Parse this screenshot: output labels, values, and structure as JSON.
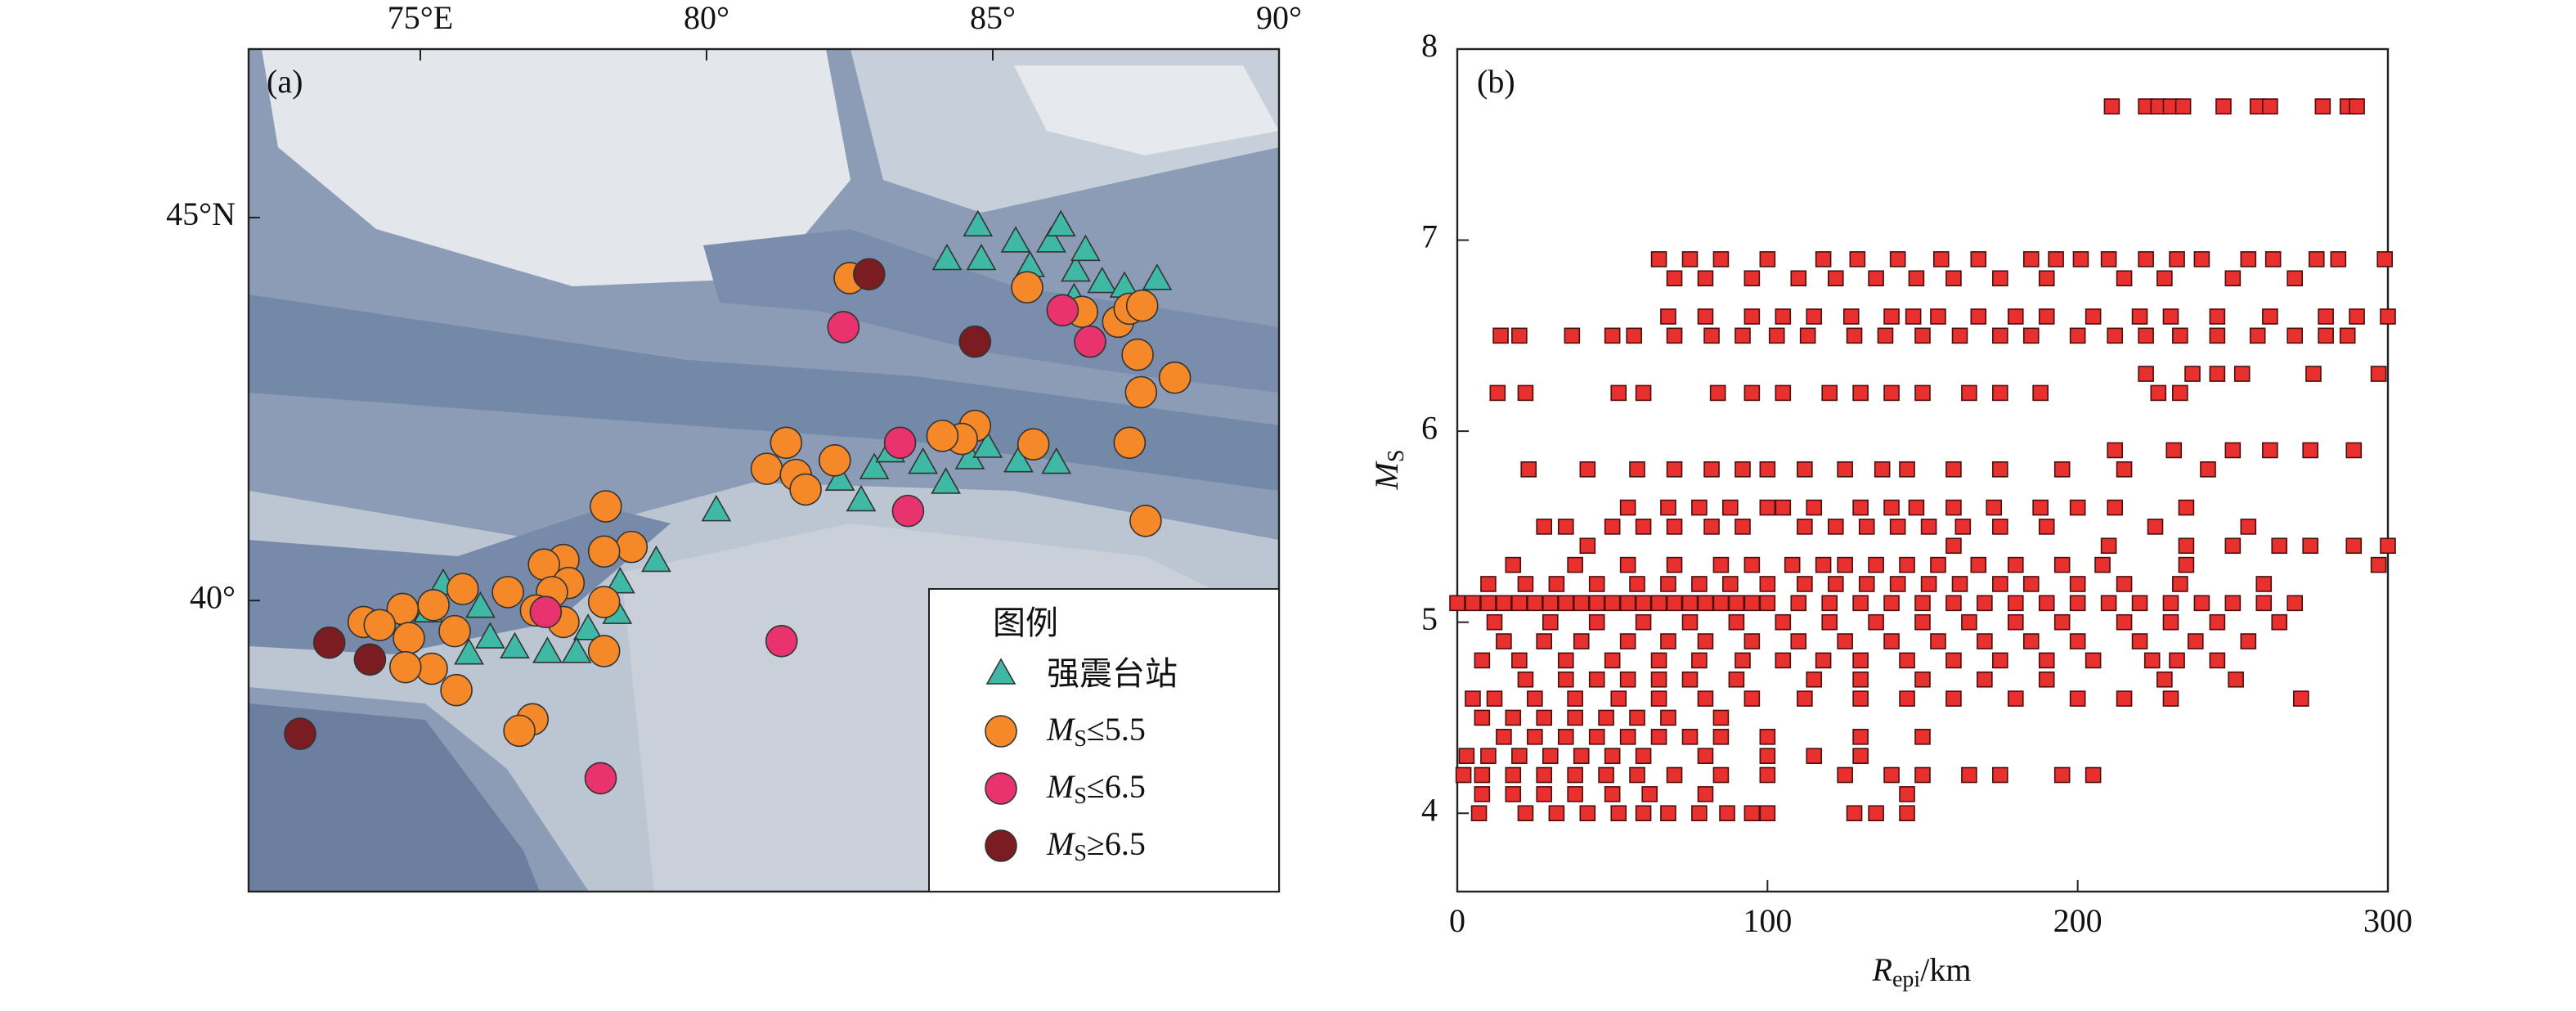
{
  "chart_data": [
    {
      "type": "map",
      "panel_label": "(a)",
      "legend_title": "图例",
      "xlim": [
        72,
        90
      ],
      "ylim": [
        36.2,
        47.2
      ],
      "xticks": [
        {
          "value": 75,
          "label": "75°E"
        },
        {
          "value": 80,
          "label": "80°"
        },
        {
          "value": 85,
          "label": "85°"
        },
        {
          "value": 90,
          "label": "90°"
        }
      ],
      "yticks": [
        {
          "value": 45,
          "label": "45°N"
        },
        {
          "value": 40,
          "label": "40°"
        }
      ],
      "series": [
        {
          "name": "强震台站",
          "marker": "triangle",
          "color": "#3fb9a6",
          "x": [
            84.74,
            84.2,
            84.8,
            85.4,
            86.02,
            86.19,
            85.65,
            86.45,
            86.62,
            86.91,
            87.3,
            87.87,
            86.42,
            80.17,
            82.33,
            82.7,
            82.93,
            83.21,
            83.78,
            84.18,
            84.6,
            84.91,
            85.45,
            86.11,
            79.12,
            78.44,
            77.93,
            77.73,
            77.22,
            76.65,
            76.22,
            75.85,
            75.4,
            75.14,
            76.05,
            78.49
          ],
          "values": [
            44.89,
            44.45,
            44.45,
            44.68,
            44.68,
            44.89,
            44.36,
            44.3,
            44.57,
            44.15,
            44.09,
            44.19,
            43.94,
            41.17,
            41.57,
            41.3,
            41.72,
            41.94,
            41.79,
            41.53,
            41.85,
            42.0,
            41.81,
            41.79,
            40.51,
            39.83,
            39.62,
            39.32,
            39.32,
            39.38,
            39.51,
            39.3,
            40.21,
            39.85,
            39.91,
            40.23
          ]
        },
        {
          "name": "MS≤5.5",
          "marker": "circle",
          "color": "#f5892a",
          "x": [
            82.5,
            85.6,
            86.56,
            87.19,
            87.39,
            87.61,
            87.53,
            87.59,
            88.18,
            87.39,
            87.67,
            85.71,
            84.69,
            84.46,
            84.12,
            82.24,
            81.39,
            81.05,
            81.56,
            81.73,
            78.24,
            78.69,
            78.21,
            77.5,
            77.16,
            77.59,
            77.3,
            78.21,
            76.53,
            75.74,
            75.23,
            74.69,
            74.01,
            74.29,
            74.8,
            75.6,
            75.2,
            74.74,
            75.63,
            78.21,
            77.5,
            76.96,
            76.73,
            77.02
          ],
          "values": [
            44.21,
            44.09,
            43.77,
            43.64,
            43.81,
            43.85,
            43.21,
            42.72,
            42.91,
            42.06,
            41.04,
            42.04,
            42.28,
            42.11,
            42.15,
            41.83,
            42.06,
            41.72,
            41.64,
            41.45,
            41.23,
            40.7,
            40.64,
            40.53,
            40.47,
            40.23,
            40.11,
            39.98,
            40.11,
            40.15,
            39.94,
            39.89,
            39.72,
            39.68,
            39.51,
            39.6,
            39.11,
            39.13,
            38.83,
            39.34,
            39.72,
            38.45,
            38.3,
            39.87
          ]
        },
        {
          "name": "MS≤6.5",
          "marker": "circle",
          "color": "#e8336e",
          "x": [
            82.39,
            86.22,
            86.7,
            83.38,
            83.52,
            77.19,
            81.31,
            78.15
          ],
          "values": [
            43.57,
            43.79,
            43.38,
            42.06,
            41.17,
            39.85,
            39.47,
            37.68
          ]
        },
        {
          "name": "MS≥6.5",
          "marker": "circle",
          "color": "#7a1c22",
          "x": [
            82.84,
            84.69,
            73.41,
            74.12,
            72.9
          ],
          "values": [
            44.26,
            43.38,
            39.45,
            39.23,
            38.26
          ]
        }
      ]
    },
    {
      "type": "scatter",
      "panel_label": "(b)",
      "xlabel": "Repi/km",
      "ylabel": "MS",
      "color": "#e8302e",
      "xlim": [
        0,
        300
      ],
      "ylim": [
        3.59,
        8
      ],
      "xticks": [
        0,
        100,
        200,
        300
      ],
      "yticks": [
        4,
        5,
        6,
        7,
        8
      ],
      "x": [
        211,
        222,
        226,
        230,
        234,
        247,
        258,
        262,
        279,
        287,
        290,
        65,
        75,
        85,
        100,
        118,
        129,
        142,
        156,
        168,
        185,
        193,
        201,
        210,
        222,
        232,
        240,
        255,
        263,
        277,
        284,
        299,
        70,
        80,
        95,
        110,
        122,
        135,
        148,
        160,
        175,
        190,
        215,
        228,
        250,
        270,
        68,
        80,
        95,
        105,
        115,
        127,
        140,
        147,
        155,
        168,
        180,
        190,
        205,
        220,
        230,
        245,
        262,
        280,
        290,
        300,
        14,
        20,
        37,
        50,
        57,
        70,
        82,
        92,
        103,
        113,
        128,
        138,
        150,
        162,
        175,
        185,
        200,
        212,
        222,
        233,
        245,
        258,
        270,
        280,
        287,
        222,
        237,
        245,
        253,
        276,
        297,
        13,
        22,
        52,
        60,
        84,
        95,
        105,
        120,
        130,
        140,
        150,
        165,
        175,
        188,
        226,
        233,
        212,
        231,
        250,
        262,
        275,
        289,
        23,
        42,
        58,
        70,
        82,
        92,
        100,
        112,
        125,
        137,
        145,
        160,
        175,
        195,
        215,
        242,
        55,
        68,
        78,
        88,
        100,
        105,
        115,
        130,
        140,
        148,
        160,
        173,
        188,
        200,
        212,
        235,
        28,
        35,
        50,
        60,
        70,
        82,
        92,
        112,
        122,
        132,
        142,
        152,
        163,
        175,
        190,
        225,
        255,
        42,
        160,
        210,
        235,
        250,
        265,
        275,
        289,
        300,
        18,
        38,
        55,
        70,
        85,
        95,
        108,
        118,
        125,
        135,
        145,
        155,
        168,
        180,
        195,
        208,
        235,
        297,
        10,
        22,
        32,
        45,
        58,
        68,
        78,
        88,
        100,
        112,
        122,
        132,
        142,
        152,
        162,
        175,
        185,
        200,
        215,
        233,
        260,
        0,
        5,
        10,
        15,
        20,
        25,
        30,
        35,
        40,
        45,
        50,
        55,
        60,
        65,
        70,
        75,
        80,
        85,
        90,
        95,
        100,
        110,
        120,
        130,
        140,
        150,
        160,
        170,
        180,
        190,
        200,
        210,
        220,
        230,
        240,
        250,
        260,
        270,
        12,
        30,
        45,
        60,
        75,
        90,
        105,
        120,
        135,
        150,
        165,
        180,
        195,
        215,
        230,
        245,
        265,
        15,
        28,
        40,
        55,
        68,
        80,
        95,
        110,
        125,
        140,
        155,
        170,
        185,
        200,
        220,
        238,
        255,
        8,
        20,
        35,
        50,
        65,
        78,
        92,
        105,
        118,
        130,
        145,
        160,
        175,
        190,
        205,
        224,
        232,
        245,
        22,
        35,
        45,
        55,
        65,
        75,
        90,
        115,
        130,
        150,
        170,
        190,
        228,
        251,
        5,
        12,
        25,
        38,
        52,
        65,
        80,
        95,
        112,
        130,
        145,
        160,
        180,
        200,
        215,
        230,
        272,
        8,
        18,
        28,
        38,
        48,
        58,
        68,
        85,
        15,
        25,
        35,
        45,
        55,
        65,
        75,
        85,
        100,
        130,
        150,
        3,
        10,
        20,
        30,
        40,
        50,
        60,
        80,
        100,
        115,
        130,
        2,
        8,
        18,
        28,
        38,
        48,
        58,
        70,
        85,
        100,
        125,
        140,
        150,
        165,
        175,
        195,
        205,
        8,
        18,
        28,
        38,
        50,
        62,
        80,
        145,
        7,
        22,
        32,
        42,
        52,
        60,
        68,
        78,
        87,
        95,
        100,
        128,
        135,
        145
      ],
      "values": [
        7.7,
        7.7,
        7.7,
        7.7,
        7.7,
        7.7,
        7.7,
        7.7,
        7.7,
        7.7,
        7.7,
        6.9,
        6.9,
        6.9,
        6.9,
        6.9,
        6.9,
        6.9,
        6.9,
        6.9,
        6.9,
        6.9,
        6.9,
        6.9,
        6.9,
        6.9,
        6.9,
        6.9,
        6.9,
        6.9,
        6.9,
        6.9,
        6.8,
        6.8,
        6.8,
        6.8,
        6.8,
        6.8,
        6.8,
        6.8,
        6.8,
        6.8,
        6.8,
        6.8,
        6.8,
        6.8,
        6.6,
        6.6,
        6.6,
        6.6,
        6.6,
        6.6,
        6.6,
        6.6,
        6.6,
        6.6,
        6.6,
        6.6,
        6.6,
        6.6,
        6.6,
        6.6,
        6.6,
        6.6,
        6.6,
        6.6,
        6.5,
        6.5,
        6.5,
        6.5,
        6.5,
        6.5,
        6.5,
        6.5,
        6.5,
        6.5,
        6.5,
        6.5,
        6.5,
        6.5,
        6.5,
        6.5,
        6.5,
        6.5,
        6.5,
        6.5,
        6.5,
        6.5,
        6.5,
        6.5,
        6.5,
        6.3,
        6.3,
        6.3,
        6.3,
        6.3,
        6.3,
        6.2,
        6.2,
        6.2,
        6.2,
        6.2,
        6.2,
        6.2,
        6.2,
        6.2,
        6.2,
        6.2,
        6.2,
        6.2,
        6.2,
        6.2,
        6.2,
        5.9,
        5.9,
        5.9,
        5.9,
        5.9,
        5.9,
        5.8,
        5.8,
        5.8,
        5.8,
        5.8,
        5.8,
        5.8,
        5.8,
        5.8,
        5.8,
        5.8,
        5.8,
        5.8,
        5.8,
        5.8,
        5.8,
        5.6,
        5.6,
        5.6,
        5.6,
        5.6,
        5.6,
        5.6,
        5.6,
        5.6,
        5.6,
        5.6,
        5.6,
        5.6,
        5.6,
        5.6,
        5.6,
        5.5,
        5.5,
        5.5,
        5.5,
        5.5,
        5.5,
        5.5,
        5.5,
        5.5,
        5.5,
        5.5,
        5.5,
        5.5,
        5.5,
        5.5,
        5.5,
        5.5,
        5.4,
        5.4,
        5.4,
        5.4,
        5.4,
        5.4,
        5.4,
        5.4,
        5.4,
        5.3,
        5.3,
        5.3,
        5.3,
        5.3,
        5.3,
        5.3,
        5.3,
        5.3,
        5.3,
        5.3,
        5.3,
        5.3,
        5.3,
        5.3,
        5.3,
        5.3,
        5.3,
        5.2,
        5.2,
        5.2,
        5.2,
        5.2,
        5.2,
        5.2,
        5.2,
        5.2,
        5.2,
        5.2,
        5.2,
        5.2,
        5.2,
        5.2,
        5.2,
        5.2,
        5.2,
        5.2,
        5.2,
        5.2,
        5.1,
        5.1,
        5.1,
        5.1,
        5.1,
        5.1,
        5.1,
        5.1,
        5.1,
        5.1,
        5.1,
        5.1,
        5.1,
        5.1,
        5.1,
        5.1,
        5.1,
        5.1,
        5.1,
        5.1,
        5.1,
        5.1,
        5.1,
        5.1,
        5.1,
        5.1,
        5.1,
        5.1,
        5.1,
        5.1,
        5.1,
        5.1,
        5.1,
        5.1,
        5.1,
        5.1,
        5.1,
        5.1,
        5.0,
        5.0,
        5.0,
        5.0,
        5.0,
        5.0,
        5.0,
        5.0,
        5.0,
        5.0,
        5.0,
        5.0,
        5.0,
        5.0,
        5.0,
        5.0,
        5.0,
        4.9,
        4.9,
        4.9,
        4.9,
        4.9,
        4.9,
        4.9,
        4.9,
        4.9,
        4.9,
        4.9,
        4.9,
        4.9,
        4.9,
        4.9,
        4.9,
        4.9,
        4.8,
        4.8,
        4.8,
        4.8,
        4.8,
        4.8,
        4.8,
        4.8,
        4.8,
        4.8,
        4.8,
        4.8,
        4.8,
        4.8,
        4.8,
        4.8,
        4.8,
        4.8,
        4.7,
        4.7,
        4.7,
        4.7,
        4.7,
        4.7,
        4.7,
        4.7,
        4.7,
        4.7,
        4.7,
        4.7,
        4.7,
        4.7,
        4.6,
        4.6,
        4.6,
        4.6,
        4.6,
        4.6,
        4.6,
        4.6,
        4.6,
        4.6,
        4.6,
        4.6,
        4.6,
        4.6,
        4.6,
        4.6,
        4.6,
        4.5,
        4.5,
        4.5,
        4.5,
        4.5,
        4.5,
        4.5,
        4.5,
        4.4,
        4.4,
        4.4,
        4.4,
        4.4,
        4.4,
        4.4,
        4.4,
        4.4,
        4.4,
        4.4,
        4.3,
        4.3,
        4.3,
        4.3,
        4.3,
        4.3,
        4.3,
        4.3,
        4.3,
        4.3,
        4.3,
        4.2,
        4.2,
        4.2,
        4.2,
        4.2,
        4.2,
        4.2,
        4.2,
        4.2,
        4.2,
        4.2,
        4.2,
        4.2,
        4.2,
        4.2,
        4.2,
        4.2,
        4.1,
        4.1,
        4.1,
        4.1,
        4.1,
        4.1,
        4.1,
        4.1,
        4.0,
        4.0,
        4.0,
        4.0,
        4.0,
        4.0,
        4.0,
        4.0,
        4.0,
        4.0,
        4.0,
        4.0,
        4.0,
        4.0
      ]
    }
  ]
}
